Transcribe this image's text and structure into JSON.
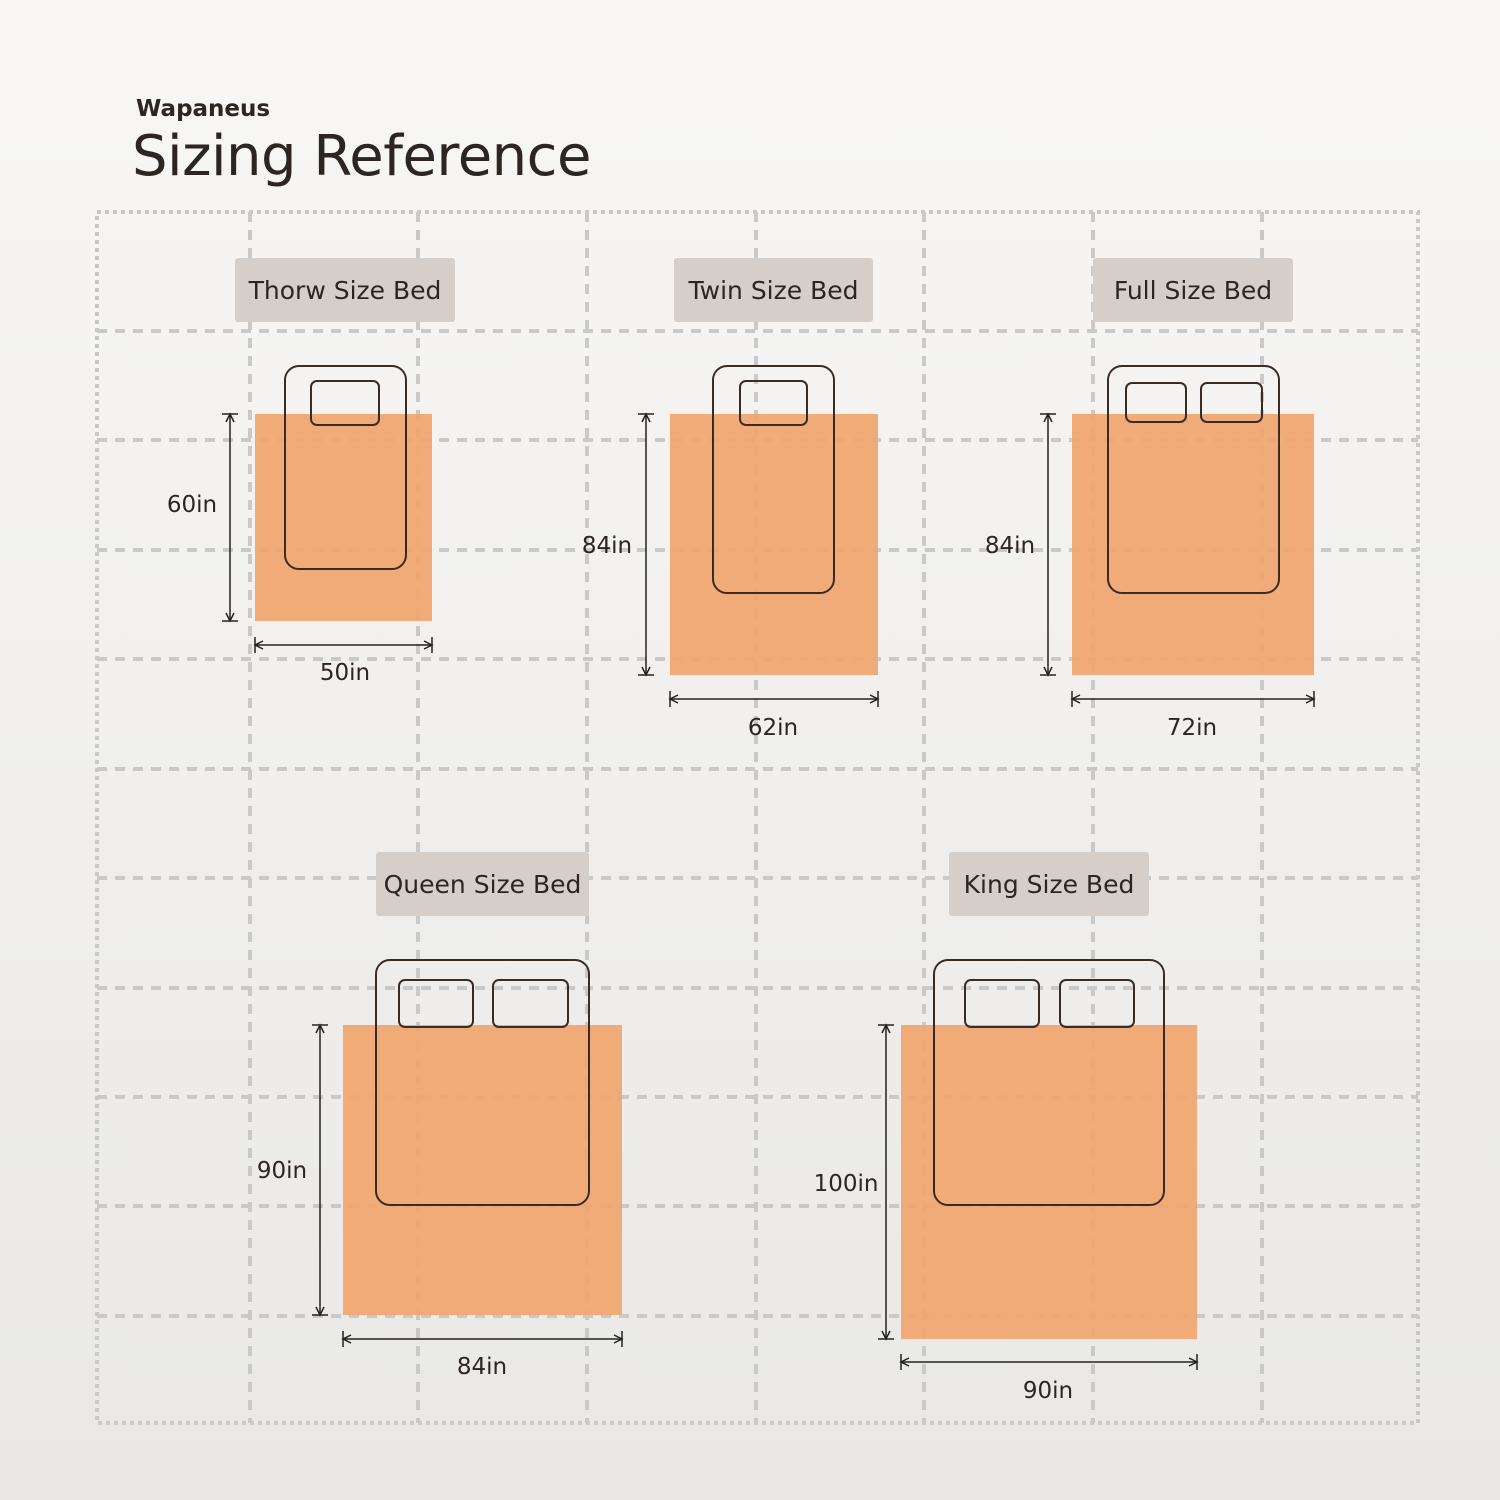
{
  "header": {
    "brand": "Wapaneus",
    "title": "Sizing Reference"
  },
  "colors": {
    "rug": "#f0a56e",
    "label_bg": "#d6cfc9",
    "grid": "#c9c9c9",
    "outline": "#3a2c25",
    "text": "#2d2521"
  },
  "beds": [
    {
      "name": "Thorw Size Bed",
      "width_label": "50in",
      "length_label": "60in",
      "pillows": 1
    },
    {
      "name": "Twin Size Bed",
      "width_label": "62in",
      "length_label": "84in",
      "pillows": 1
    },
    {
      "name": "Full Size Bed",
      "width_label": "72in",
      "length_label": "84in",
      "pillows": 2
    },
    {
      "name": "Queen Size Bed",
      "width_label": "84in",
      "length_label": "90in",
      "pillows": 2
    },
    {
      "name": "King Size Bed",
      "width_label": "90in",
      "length_label": "100in",
      "pillows": 2
    }
  ]
}
